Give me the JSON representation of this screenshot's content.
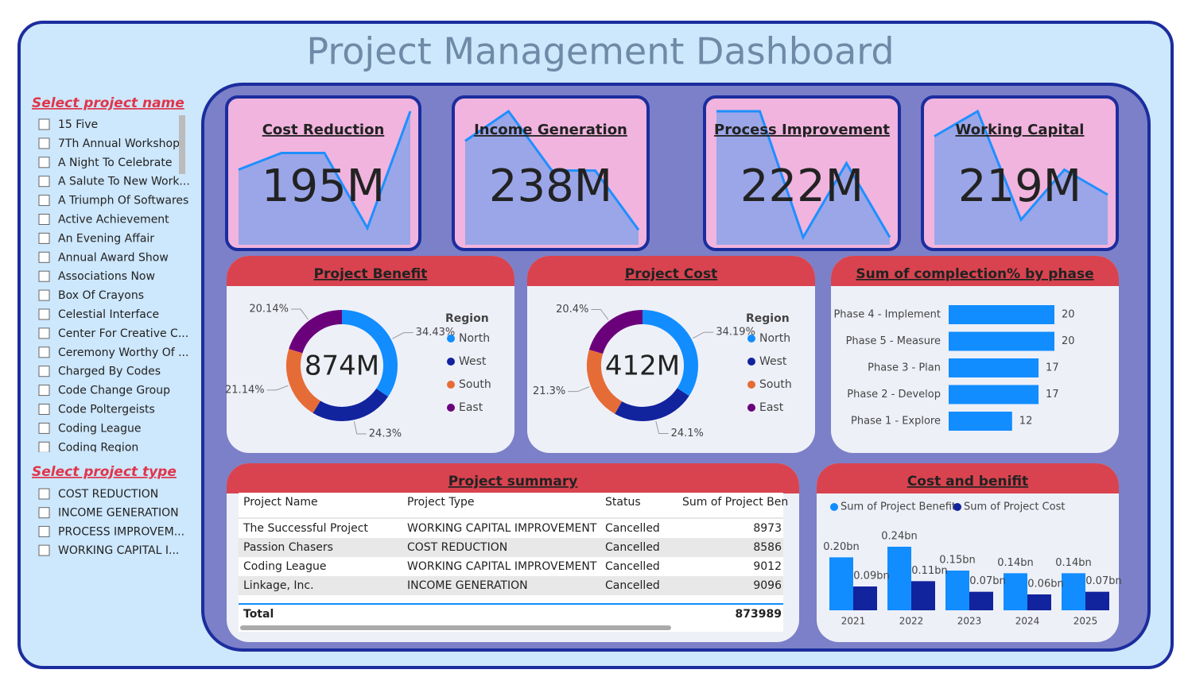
{
  "title": "Project Management Dashboard",
  "slicers": [
    {
      "title": "Select project name",
      "items": [
        "15 Five",
        "7Th Annual Workshop",
        "A Night To Celebrate",
        "A Salute To New Work...",
        "A Triumph Of Softwares",
        "Active Achievement",
        "An Evening Affair",
        "Annual Award Show",
        "Associations Now",
        "Box Of Crayons",
        "Celestial Interface",
        "Center For Creative C...",
        "Ceremony Worthy Of ...",
        "Charged By Codes",
        "Code Change Group",
        "Code Poltergeists",
        "Coding League",
        "Coding Region"
      ]
    },
    {
      "title": "Select project type",
      "items": [
        "COST REDUCTION",
        "INCOME GENERATION",
        "PROCESS IMPROVEM...",
        "WORKING CAPITAL I..."
      ]
    }
  ],
  "kpis": [
    {
      "title": "Cost Reduction",
      "value": "195M",
      "trend": [
        45,
        55,
        55,
        10,
        80
      ]
    },
    {
      "title": "Income Generation",
      "value": "238M",
      "trend": [
        70,
        90,
        50,
        50,
        10
      ]
    },
    {
      "title": "Process Improvement",
      "value": "222M",
      "trend": [
        90,
        90,
        5,
        55,
        5
      ]
    },
    {
      "title": "Working Capital",
      "value": "219M",
      "trend": [
        65,
        80,
        15,
        45,
        30
      ]
    }
  ],
  "chart_data": [
    {
      "type": "donut",
      "title": "Project Benefit",
      "center_label": "874M",
      "legend_title": "Region",
      "categories": [
        "North",
        "West",
        "South",
        "East"
      ],
      "values": [
        34.43,
        24.3,
        21.14,
        20.14
      ],
      "value_labels": [
        "34.43%",
        "24.3%",
        "21.14%",
        "20.14%"
      ],
      "colors": [
        "#118dff",
        "#12239e",
        "#e66c37",
        "#6b007b"
      ]
    },
    {
      "type": "donut",
      "title": "Project Cost",
      "center_label": "412M",
      "legend_title": "Region",
      "categories": [
        "North",
        "West",
        "South",
        "East"
      ],
      "values": [
        34.19,
        24.1,
        21.3,
        20.4
      ],
      "value_labels": [
        "34.19%",
        "24.1%",
        "21.3%",
        "20.4%"
      ],
      "colors": [
        "#118dff",
        "#12239e",
        "#e66c37",
        "#6b007b"
      ]
    },
    {
      "type": "hbar",
      "title": "Sum of complection% by phase",
      "categories": [
        "Phase 4 - Implement",
        "Phase 5 - Measure",
        "Phase 3 - Plan",
        "Phase 2 - Develop",
        "Phase 1 - Explore"
      ],
      "values": [
        20,
        20,
        17,
        17,
        12
      ],
      "color": "#118dff"
    },
    {
      "type": "grouped_bar",
      "title": "Cost and benifit",
      "categories": [
        "2021",
        "2022",
        "2023",
        "2024",
        "2025"
      ],
      "series": [
        {
          "name": "Sum of Project Benefit",
          "color": "#118dff",
          "values": [
            0.2,
            0.24,
            0.15,
            0.14,
            0.14
          ],
          "value_labels": [
            "0.20bn",
            "0.24bn",
            "0.15bn",
            "0.14bn",
            "0.14bn"
          ]
        },
        {
          "name": "Sum of Project Cost",
          "color": "#12239e",
          "values": [
            0.09,
            0.11,
            0.07,
            0.06,
            0.07
          ],
          "value_labels": [
            "0.09bn",
            "0.11bn",
            "0.07bn",
            "0.06bn",
            "0.07bn"
          ]
        }
      ]
    }
  ],
  "table": {
    "title": "Project summary",
    "columns": [
      "Project Name",
      "Project Type",
      "Status",
      "Sum of Project Ben"
    ],
    "rows": [
      [
        "The Successful Project",
        "WORKING CAPITAL IMPROVEMENT",
        "Cancelled",
        "8973"
      ],
      [
        "Passion Chasers",
        "COST REDUCTION",
        "Cancelled",
        "8586"
      ],
      [
        "Coding League",
        "WORKING CAPITAL IMPROVEMENT",
        "Cancelled",
        "9012"
      ],
      [
        "Linkage, Inc.",
        "INCOME GENERATION",
        "Cancelled",
        "9096"
      ]
    ],
    "total": [
      "Total",
      "873989"
    ]
  }
}
